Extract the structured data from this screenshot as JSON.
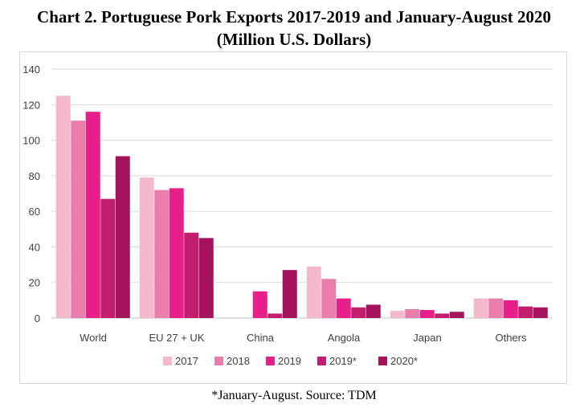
{
  "title_line1": "Chart 2. Portuguese Pork Exports 2017-2019 and January-August 2020",
  "title_line2": "(Million U.S. Dollars)",
  "footnote": "*January-August.  Source: TDM",
  "chart_data": {
    "type": "bar",
    "categories": [
      "World",
      "EU 27 + UK",
      "China",
      "Angola",
      "Japan",
      "Others"
    ],
    "series": [
      {
        "name": "2017",
        "color": "#f4b8cc",
        "values": [
          125,
          79,
          0,
          29,
          4,
          11
        ]
      },
      {
        "name": "2018",
        "color": "#e97eab",
        "values": [
          111,
          72,
          0,
          22,
          5,
          11
        ]
      },
      {
        "name": "2019",
        "color": "#e81f88",
        "values": [
          116,
          73,
          15,
          11,
          4.5,
          10
        ]
      },
      {
        "name": "2019*",
        "color": "#c21d6e",
        "values": [
          67,
          48,
          2.5,
          6,
          2.5,
          6.5
        ]
      },
      {
        "name": "2020*",
        "color": "#a5135d",
        "values": [
          91,
          45,
          27,
          7.5,
          3.5,
          6
        ]
      }
    ],
    "ylim": [
      0,
      140
    ],
    "yticks": [
      0,
      20,
      40,
      60,
      80,
      100,
      120,
      140
    ],
    "grid": true,
    "legend_position": "bottom"
  }
}
